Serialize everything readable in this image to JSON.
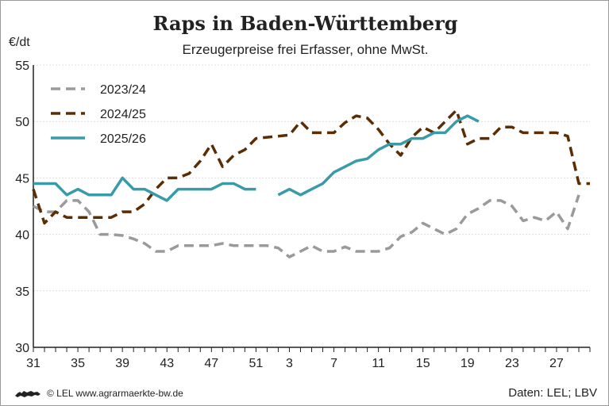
{
  "title": "Raps in Baden-Württemberg",
  "subtitle": "Erzeugerpreise frei Erfasser, ohne MwSt.",
  "footer": {
    "copyright": "© LEL www.agrarmaerkte-bw.de",
    "source": "Daten: LEL; LBV"
  },
  "chart_data": {
    "type": "line",
    "ylabel": "€/dt",
    "ylim": [
      30,
      55
    ],
    "yticks": [
      30,
      35,
      40,
      45,
      50,
      55
    ],
    "x_index_range": [
      0,
      50
    ],
    "xtick_labels": [
      "31",
      "35",
      "39",
      "43",
      "47",
      "51",
      "3",
      "7",
      "11",
      "15",
      "19",
      "23",
      "27"
    ],
    "xtick_positions": [
      0,
      4,
      8,
      12,
      16,
      20,
      23,
      27,
      31,
      35,
      39,
      43,
      47
    ],
    "grid": true,
    "legend": "top-left",
    "series": [
      {
        "name": "2023/24",
        "style": "dashed",
        "color": "#9a9a9a",
        "points": [
          [
            0,
            42.5
          ],
          [
            1,
            42
          ],
          [
            2,
            42
          ],
          [
            3,
            43
          ],
          [
            4,
            43
          ],
          [
            5,
            42
          ],
          [
            6,
            40
          ],
          [
            7,
            40
          ],
          [
            8,
            39.9
          ],
          [
            9,
            39.6
          ],
          [
            10,
            39.2
          ],
          [
            11,
            38.5
          ],
          [
            12,
            38.5
          ],
          [
            13,
            39
          ],
          [
            14,
            39
          ],
          [
            15,
            39
          ],
          [
            16,
            39
          ],
          [
            17,
            39.2
          ],
          [
            18,
            39
          ],
          [
            19,
            39
          ],
          [
            20,
            39
          ],
          [
            21,
            39
          ],
          [
            22,
            38.8
          ],
          [
            23,
            38
          ],
          [
            24,
            38.5
          ],
          [
            25,
            39
          ],
          [
            26,
            38.5
          ],
          [
            27,
            38.5
          ],
          [
            28,
            38.9
          ],
          [
            29,
            38.5
          ],
          [
            30,
            38.5
          ],
          [
            31,
            38.5
          ],
          [
            32,
            38.8
          ],
          [
            33,
            39.8
          ],
          [
            34,
            40.2
          ],
          [
            35,
            41
          ],
          [
            36,
            40.5
          ],
          [
            37,
            40
          ],
          [
            38,
            40.5
          ],
          [
            39,
            41.8
          ],
          [
            40,
            42.3
          ],
          [
            41,
            43
          ],
          [
            42,
            43
          ],
          [
            43,
            42.5
          ],
          [
            44,
            41.2
          ],
          [
            45,
            41.5
          ],
          [
            46,
            41.2
          ],
          [
            47,
            42
          ],
          [
            48,
            40.5
          ],
          [
            49,
            43.5
          ]
        ]
      },
      {
        "name": "2024/25",
        "style": "dashed",
        "color": "#5a2d05",
        "points": [
          [
            0,
            44
          ],
          [
            1,
            41
          ],
          [
            2,
            42
          ],
          [
            3,
            41.5
          ],
          [
            4,
            41.5
          ],
          [
            5,
            41.5
          ],
          [
            6,
            41.5
          ],
          [
            7,
            41.5
          ],
          [
            8,
            42
          ],
          [
            9,
            42
          ],
          [
            10,
            42.7
          ],
          [
            11,
            44
          ],
          [
            12,
            45
          ],
          [
            13,
            45
          ],
          [
            14,
            45.4
          ],
          [
            15,
            46.5
          ],
          [
            16,
            48
          ],
          [
            17,
            46
          ],
          [
            18,
            47
          ],
          [
            19,
            47.5
          ],
          [
            20,
            48.5
          ],
          [
            21,
            48.6
          ],
          [
            22,
            48.7
          ],
          [
            23,
            48.8
          ],
          [
            24,
            50
          ],
          [
            25,
            49
          ],
          [
            26,
            49
          ],
          [
            27,
            49
          ],
          [
            28,
            49.9
          ],
          [
            29,
            50.5
          ],
          [
            30,
            50.3
          ],
          [
            31,
            49.3
          ],
          [
            32,
            48
          ],
          [
            33,
            47
          ],
          [
            34,
            48.6
          ],
          [
            35,
            49.5
          ],
          [
            36,
            49
          ],
          [
            37,
            50
          ],
          [
            38,
            51
          ],
          [
            39,
            48
          ],
          [
            40,
            48.5
          ],
          [
            41,
            48.5
          ],
          [
            42,
            49.5
          ],
          [
            43,
            49.5
          ],
          [
            44,
            49
          ],
          [
            45,
            49
          ],
          [
            46,
            49
          ],
          [
            47,
            49
          ],
          [
            48,
            48.7
          ],
          [
            49,
            44.5
          ],
          [
            50,
            44.5
          ]
        ]
      },
      {
        "name": "2025/26",
        "style": "solid",
        "color": "#3a9aa8",
        "segments": [
          [
            [
              0,
              44.5
            ],
            [
              1,
              44.5
            ],
            [
              2,
              44.5
            ],
            [
              3,
              43.5
            ],
            [
              4,
              44
            ],
            [
              5,
              43.5
            ],
            [
              6,
              43.5
            ],
            [
              7,
              43.5
            ],
            [
              8,
              45
            ],
            [
              9,
              44
            ],
            [
              10,
              44
            ],
            [
              11,
              43.5
            ],
            [
              12,
              43
            ],
            [
              13,
              44
            ],
            [
              14,
              44
            ],
            [
              15,
              44
            ],
            [
              16,
              44
            ],
            [
              17,
              44.5
            ],
            [
              18,
              44.5
            ],
            [
              19,
              44
            ],
            [
              20,
              44
            ]
          ],
          [
            [
              22,
              43.5
            ],
            [
              23,
              44
            ],
            [
              24,
              43.5
            ],
            [
              25,
              44
            ],
            [
              26,
              44.5
            ],
            [
              27,
              45.5
            ],
            [
              28,
              46
            ],
            [
              29,
              46.5
            ],
            [
              30,
              46.7
            ],
            [
              31,
              47.5
            ],
            [
              32,
              48
            ],
            [
              33,
              48
            ],
            [
              34,
              48.5
            ],
            [
              35,
              48.5
            ],
            [
              36,
              49
            ],
            [
              37,
              49
            ],
            [
              38,
              50
            ],
            [
              39,
              50.5
            ],
            [
              40,
              50
            ]
          ]
        ]
      }
    ]
  }
}
